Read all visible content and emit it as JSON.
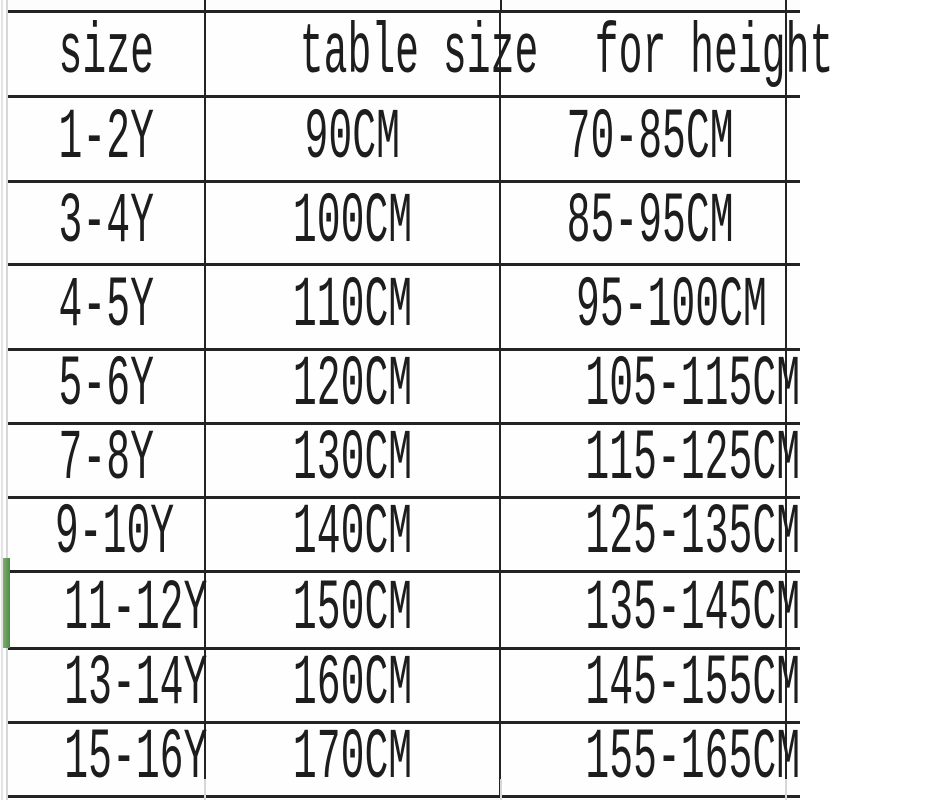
{
  "table": {
    "columns": [
      "size",
      "table size",
      "for height"
    ],
    "rows": [
      [
        "1-2Y",
        "90CM",
        "70-85CM"
      ],
      [
        "3-4Y",
        "100CM",
        "85-95CM"
      ],
      [
        "4-5Y",
        "110CM",
        "95-100CM"
      ],
      [
        "5-6Y",
        "120CM",
        "105-115CM"
      ],
      [
        "7-8Y",
        "130CM",
        "115-125CM"
      ],
      [
        "9-10Y",
        "140CM",
        "125-135CM"
      ],
      [
        "11-12Y",
        "150CM",
        "135-145CM"
      ],
      [
        "13-14Y",
        "160CM",
        "145-155CM"
      ],
      [
        "15-16Y",
        "170CM",
        "155-165CM"
      ]
    ],
    "selected_row_label": "11-12Y",
    "colors": {
      "grid_border": "#232323",
      "text": "#1d1d1d",
      "selection_green": "#4f8c46",
      "faint_gridline": "#d7d7d7",
      "background": "#fdfdfd"
    }
  }
}
